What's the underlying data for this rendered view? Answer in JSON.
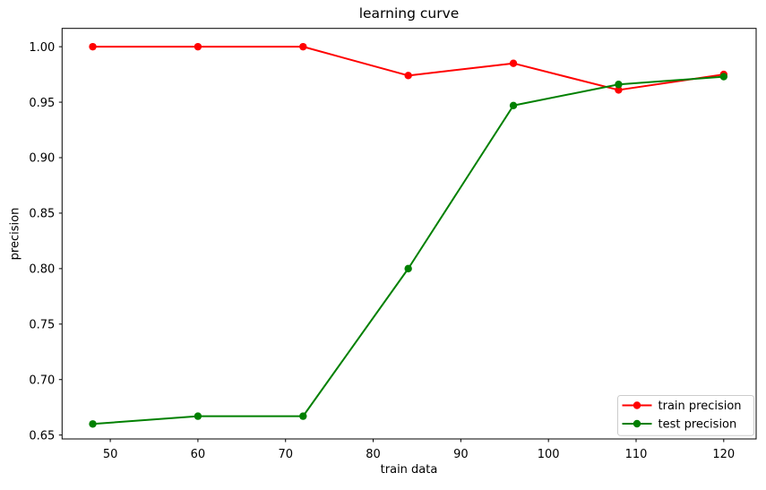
{
  "chart_data": {
    "type": "line",
    "title": "learning curve",
    "xlabel": "train data",
    "ylabel": "precision",
    "x": [
      48,
      60,
      72,
      84,
      96,
      108,
      120
    ],
    "series": [
      {
        "name": "train precision",
        "color": "#ff0000",
        "marker": "o",
        "values": [
          1.0,
          1.0,
          1.0,
          0.974,
          0.985,
          0.961,
          0.975
        ]
      },
      {
        "name": "test precision",
        "color": "#008000",
        "marker": "o",
        "values": [
          0.66,
          0.667,
          0.667,
          0.8,
          0.947,
          0.966,
          0.973
        ]
      }
    ],
    "xticks": [
      50,
      60,
      70,
      80,
      90,
      100,
      110,
      120
    ],
    "yticks": [
      0.65,
      0.7,
      0.75,
      0.8,
      0.85,
      0.9,
      0.95,
      1.0
    ],
    "xlim": [
      44.5,
      123.7
    ],
    "ylim": [
      0.6465,
      1.0165
    ],
    "grid": false,
    "legend": {
      "position": "lower right",
      "frame": true,
      "border_color": "#cccccc",
      "background_color": "#ffffff"
    },
    "axis_color": "#000000"
  }
}
